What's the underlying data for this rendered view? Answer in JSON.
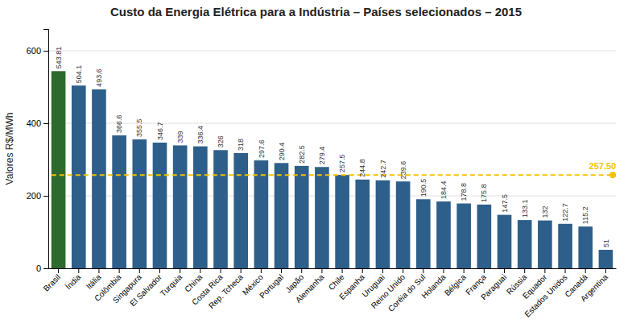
{
  "chart_data": {
    "type": "bar",
    "title": "Custo da Energia Elétrica para a Indústria – Países selecionados – 2015",
    "ylabel": "Valores R$/MWh",
    "categories": [
      "Brasil",
      "Índia",
      "Itália",
      "Colômbia",
      "Singapura",
      "El Salvador",
      "Turquia",
      "China",
      "Costa Rica",
      "Rep. Tcheca",
      "México",
      "Portugal",
      "Japão",
      "Alemanha",
      "Chile",
      "Espanha",
      "Uruguai",
      "Reino Unido",
      "Coréia do Sul",
      "Holanda",
      "Bélgica",
      "França",
      "Paraguai",
      "Rússia",
      "Equador",
      "Estados Unidos",
      "Canadá",
      "Argentina"
    ],
    "values": [
      543.81,
      504.1,
      493.6,
      366.6,
      355.5,
      346.7,
      339,
      336.4,
      326,
      318,
      297.6,
      290.4,
      282.5,
      279.4,
      257.5,
      244.8,
      242.7,
      239.6,
      190.5,
      184.4,
      178.8,
      175.8,
      147.5,
      133.1,
      132,
      122.7,
      115.2,
      51
    ],
    "colors": [
      "#2d6a2d",
      "#2d5f8a",
      "#2d5f8a",
      "#2d5f8a",
      "#2d5f8a",
      "#2d5f8a",
      "#2d5f8a",
      "#2d5f8a",
      "#2d5f8a",
      "#2d5f8a",
      "#2d5f8a",
      "#2d5f8a",
      "#2d5f8a",
      "#2d5f8a",
      "#2d5f8a",
      "#2d5f8a",
      "#2d5f8a",
      "#2d5f8a",
      "#2d5f8a",
      "#2d5f8a",
      "#2d5f8a",
      "#2d5f8a",
      "#2d5f8a",
      "#2d5f8a",
      "#2d5f8a",
      "#2d5f8a",
      "#2d5f8a",
      "#2d5f8a"
    ],
    "reference_line": {
      "value": 257.5,
      "label": "257.50",
      "color": "#f5c200"
    },
    "ylim": [
      0,
      660
    ],
    "yticks": [
      0,
      200,
      400,
      600
    ],
    "grid": true,
    "data_labels": true
  }
}
